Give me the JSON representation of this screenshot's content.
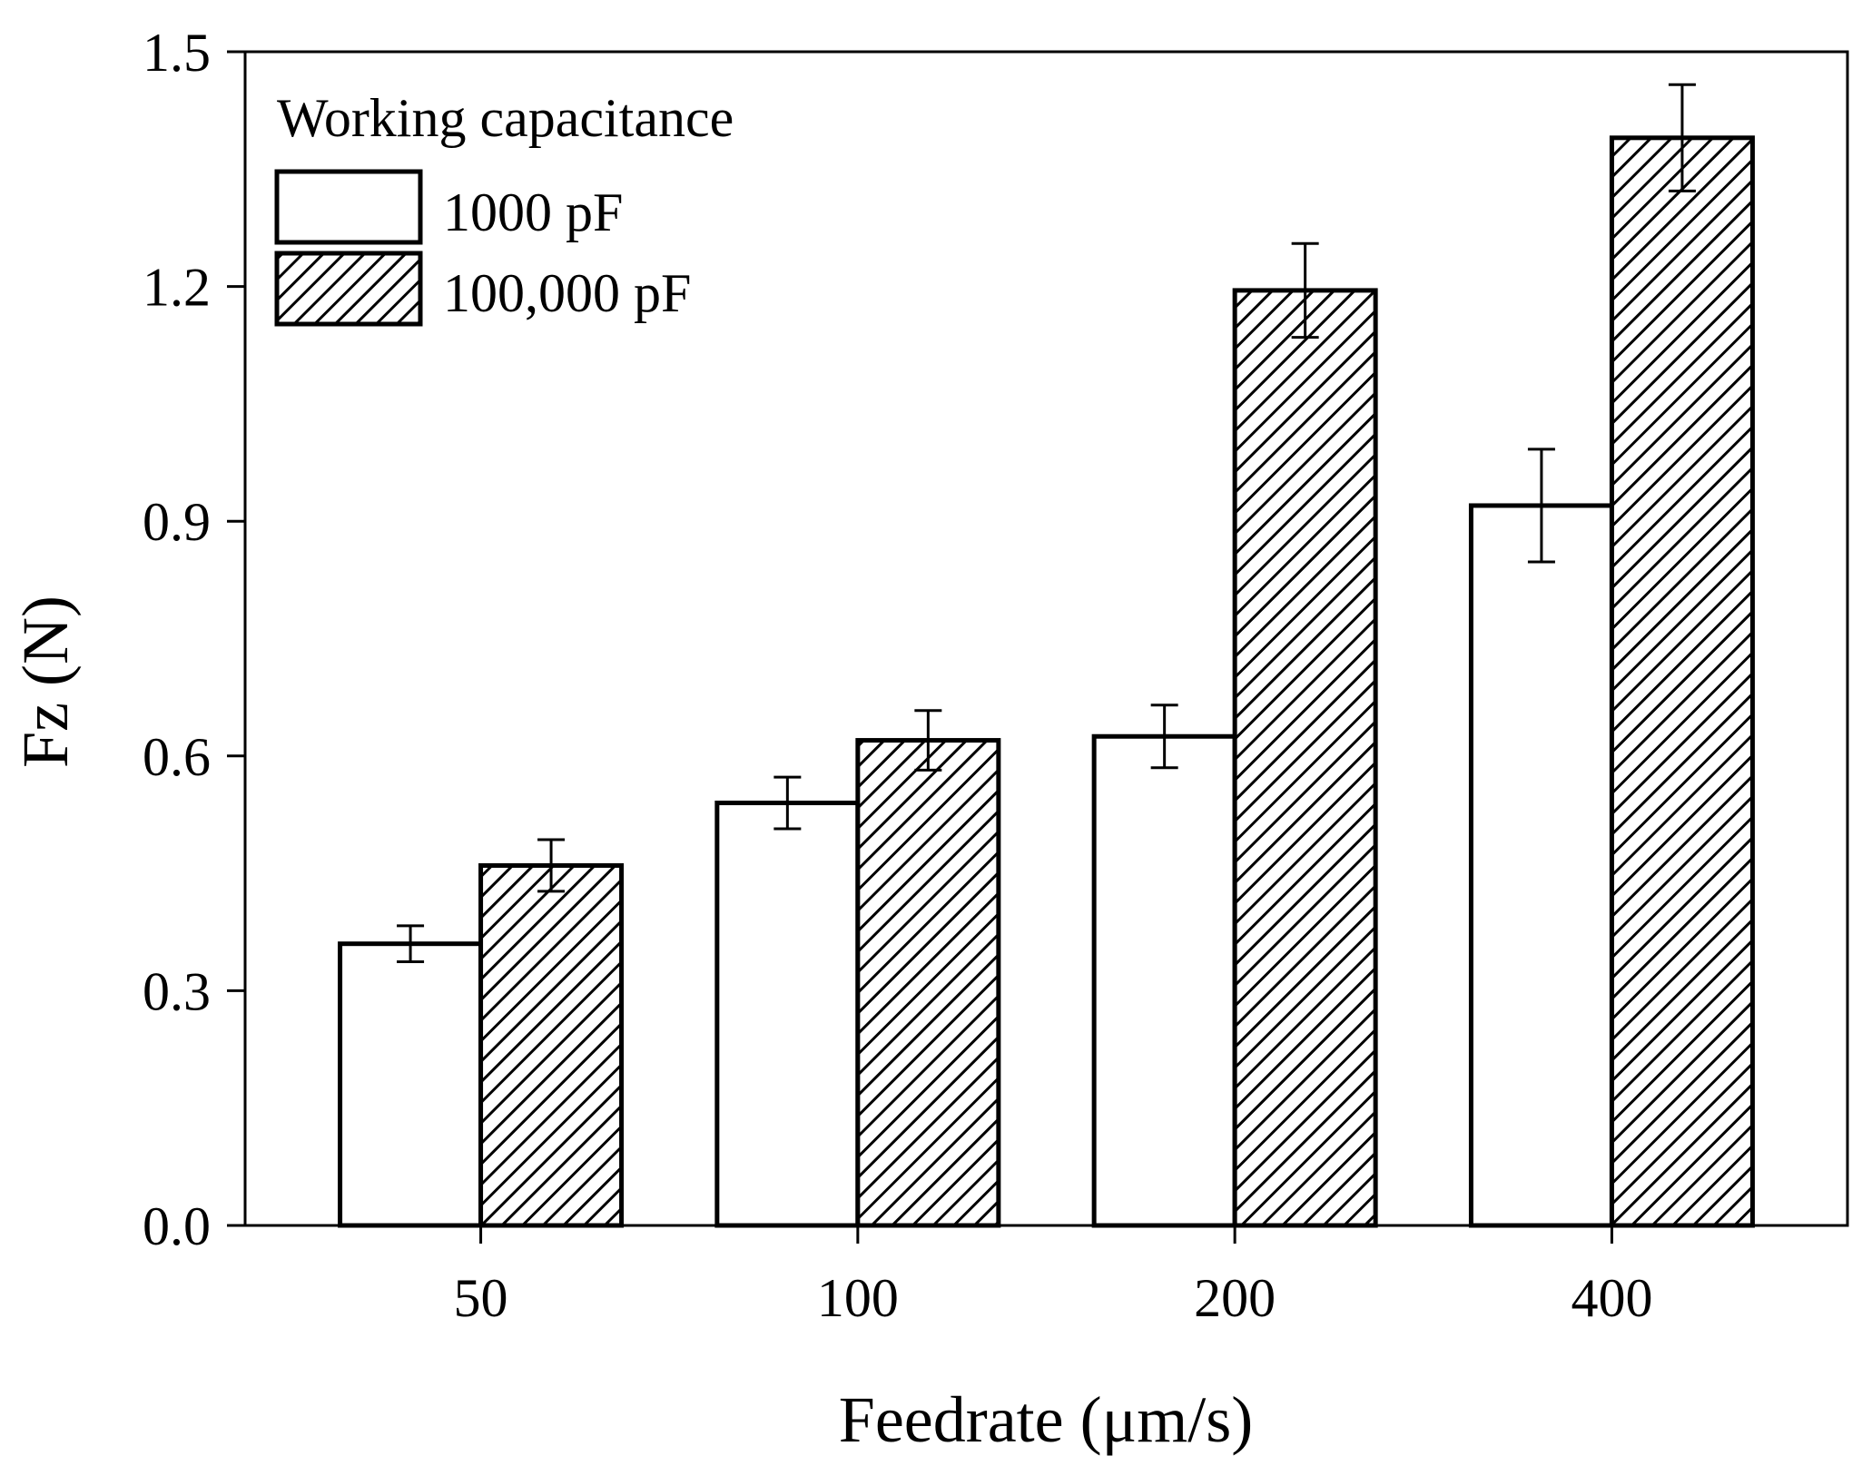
{
  "chart_data": {
    "type": "bar",
    "title": "",
    "xlabel": "Feedrate (μm/s)",
    "ylabel": "Fz (N)",
    "categories": [
      "50",
      "100",
      "200",
      "400"
    ],
    "ylim": [
      0.0,
      1.5
    ],
    "yticks": [
      "0.0",
      "0.3",
      "0.6",
      "0.9",
      "1.2",
      "1.5"
    ],
    "legend": {
      "title": "Working capacitance",
      "position": "top-left"
    },
    "series": [
      {
        "name": "1000 pF",
        "pattern": "none",
        "values": [
          0.36,
          0.54,
          0.625,
          0.92
        ],
        "errors": [
          0.023,
          0.033,
          0.04,
          0.072
        ]
      },
      {
        "name": "100,000 pF",
        "pattern": "hatched",
        "values": [
          0.46,
          0.62,
          1.195,
          1.39
        ],
        "errors": [
          0.033,
          0.038,
          0.06,
          0.068
        ]
      }
    ],
    "grid": false
  }
}
